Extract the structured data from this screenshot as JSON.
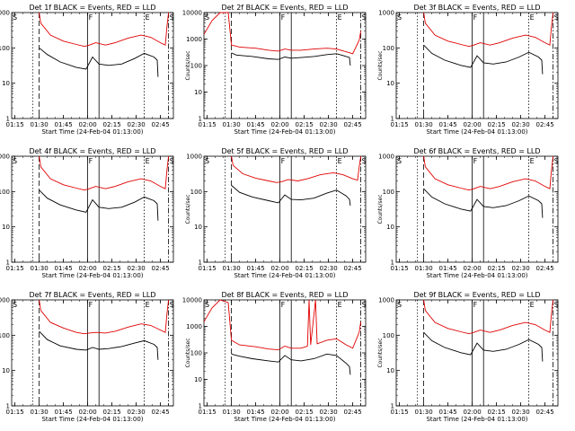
{
  "chart_data": {
    "type": "line",
    "scale": "log",
    "ylim": [
      1,
      1000
    ],
    "ylabel": "Counts/sec",
    "xlabel": "Start Time (24-Feb-04 01:13:00)",
    "x_ticks": [
      "01:15",
      "01:30",
      "01:45",
      "02:00",
      "02:15",
      "02:30",
      "02:45"
    ],
    "y_ticks": [
      "1",
      "10",
      "100",
      "1000"
    ],
    "y_ticks_ext": [
      "1",
      "10",
      "100",
      "1000",
      "10000"
    ],
    "marker_labels": [
      "S",
      "F",
      "E",
      "S"
    ],
    "x_axis_minutes": [
      0,
      100
    ],
    "marker_minutes": [
      17,
      47,
      54,
      82,
      97
    ],
    "panels": [
      {
        "title": "Det 1f BLACK = Events, RED = LLD",
        "ymax_decade": 3,
        "black": [
          [
            17,
            100
          ],
          [
            22,
            65
          ],
          [
            30,
            40
          ],
          [
            40,
            28
          ],
          [
            46,
            25
          ],
          [
            50,
            55
          ],
          [
            54,
            35
          ],
          [
            60,
            32
          ],
          [
            68,
            35
          ],
          [
            76,
            50
          ],
          [
            82,
            70
          ],
          [
            88,
            55
          ],
          [
            90,
            45
          ],
          [
            90.5,
            15
          ]
        ],
        "red": [
          [
            17,
            1000
          ],
          [
            18,
            500
          ],
          [
            24,
            230
          ],
          [
            32,
            155
          ],
          [
            40,
            125
          ],
          [
            45,
            110
          ],
          [
            48,
            120
          ],
          [
            52,
            140
          ],
          [
            58,
            120
          ],
          [
            64,
            140
          ],
          [
            72,
            190
          ],
          [
            80,
            230
          ],
          [
            86,
            200
          ],
          [
            92,
            140
          ],
          [
            95,
            120
          ],
          [
            96,
            400
          ],
          [
            97,
            1000
          ]
        ]
      },
      {
        "title": "Det 2f BLACK = Events, RED = LLD",
        "ymax_decade": 4,
        "black": [
          [
            17,
            300
          ],
          [
            20,
            250
          ],
          [
            30,
            220
          ],
          [
            40,
            180
          ],
          [
            46,
            170
          ],
          [
            50,
            210
          ],
          [
            54,
            190
          ],
          [
            60,
            200
          ],
          [
            68,
            220
          ],
          [
            76,
            260
          ],
          [
            82,
            280
          ],
          [
            86,
            240
          ],
          [
            90,
            200
          ],
          [
            90.5,
            100
          ]
        ],
        "red": [
          [
            0,
            1500
          ],
          [
            5,
            5000
          ],
          [
            10,
            12000
          ],
          [
            15,
            12000
          ],
          [
            17,
            600
          ],
          [
            22,
            500
          ],
          [
            32,
            450
          ],
          [
            40,
            380
          ],
          [
            46,
            350
          ],
          [
            50,
            420
          ],
          [
            54,
            380
          ],
          [
            60,
            380
          ],
          [
            68,
            420
          ],
          [
            76,
            450
          ],
          [
            82,
            420
          ],
          [
            88,
            330
          ],
          [
            92,
            280
          ],
          [
            96,
            900
          ],
          [
            97,
            2000
          ]
        ]
      },
      {
        "title": "Det 3f BLACK = Events, RED = LLD",
        "ymax_decade": 3,
        "black": [
          [
            17,
            120
          ],
          [
            22,
            70
          ],
          [
            30,
            45
          ],
          [
            40,
            32
          ],
          [
            46,
            28
          ],
          [
            50,
            60
          ],
          [
            54,
            38
          ],
          [
            60,
            35
          ],
          [
            68,
            40
          ],
          [
            76,
            55
          ],
          [
            82,
            75
          ],
          [
            88,
            55
          ],
          [
            90,
            45
          ],
          [
            90.5,
            18
          ]
        ],
        "red": [
          [
            17,
            1000
          ],
          [
            18,
            500
          ],
          [
            24,
            230
          ],
          [
            32,
            155
          ],
          [
            40,
            125
          ],
          [
            45,
            110
          ],
          [
            48,
            120
          ],
          [
            52,
            140
          ],
          [
            58,
            120
          ],
          [
            64,
            140
          ],
          [
            72,
            190
          ],
          [
            80,
            230
          ],
          [
            86,
            200
          ],
          [
            92,
            140
          ],
          [
            95,
            120
          ],
          [
            96,
            400
          ],
          [
            97,
            1000
          ]
        ]
      },
      {
        "title": "Det 4f BLACK = Events, RED = LLD",
        "ymax_decade": 3,
        "black": [
          [
            17,
            110
          ],
          [
            22,
            65
          ],
          [
            30,
            42
          ],
          [
            40,
            30
          ],
          [
            46,
            26
          ],
          [
            50,
            58
          ],
          [
            54,
            36
          ],
          [
            60,
            33
          ],
          [
            68,
            36
          ],
          [
            76,
            50
          ],
          [
            82,
            70
          ],
          [
            88,
            55
          ],
          [
            90,
            45
          ],
          [
            90.5,
            15
          ]
        ],
        "red": [
          [
            17,
            1000
          ],
          [
            18,
            500
          ],
          [
            24,
            230
          ],
          [
            32,
            155
          ],
          [
            40,
            125
          ],
          [
            45,
            110
          ],
          [
            48,
            120
          ],
          [
            52,
            140
          ],
          [
            58,
            120
          ],
          [
            64,
            140
          ],
          [
            72,
            190
          ],
          [
            80,
            230
          ],
          [
            86,
            200
          ],
          [
            92,
            140
          ],
          [
            95,
            120
          ],
          [
            96,
            400
          ],
          [
            97,
            1000
          ]
        ]
      },
      {
        "title": "Det 5f BLACK = Events, RED = LLD",
        "ymax_decade": 3,
        "black": [
          [
            17,
            150
          ],
          [
            22,
            95
          ],
          [
            30,
            70
          ],
          [
            40,
            55
          ],
          [
            46,
            48
          ],
          [
            50,
            80
          ],
          [
            54,
            60
          ],
          [
            60,
            58
          ],
          [
            68,
            65
          ],
          [
            76,
            90
          ],
          [
            82,
            110
          ],
          [
            88,
            75
          ],
          [
            90,
            60
          ],
          [
            90.5,
            40
          ]
        ],
        "red": [
          [
            17,
            1000
          ],
          [
            18,
            550
          ],
          [
            24,
            320
          ],
          [
            32,
            240
          ],
          [
            40,
            200
          ],
          [
            45,
            180
          ],
          [
            48,
            190
          ],
          [
            52,
            220
          ],
          [
            58,
            200
          ],
          [
            64,
            230
          ],
          [
            72,
            300
          ],
          [
            80,
            340
          ],
          [
            86,
            300
          ],
          [
            92,
            230
          ],
          [
            95,
            210
          ],
          [
            96,
            500
          ],
          [
            97,
            1000
          ]
        ]
      },
      {
        "title": "Det 6f BLACK = Events, RED = LLD",
        "ymax_decade": 3,
        "black": [
          [
            17,
            120
          ],
          [
            22,
            70
          ],
          [
            30,
            45
          ],
          [
            40,
            32
          ],
          [
            46,
            28
          ],
          [
            50,
            60
          ],
          [
            54,
            38
          ],
          [
            60,
            35
          ],
          [
            68,
            40
          ],
          [
            76,
            55
          ],
          [
            82,
            75
          ],
          [
            88,
            55
          ],
          [
            90,
            45
          ],
          [
            90.5,
            18
          ]
        ],
        "red": [
          [
            17,
            1000
          ],
          [
            18,
            500
          ],
          [
            24,
            230
          ],
          [
            32,
            155
          ],
          [
            40,
            125
          ],
          [
            45,
            110
          ],
          [
            48,
            120
          ],
          [
            52,
            140
          ],
          [
            58,
            120
          ],
          [
            64,
            140
          ],
          [
            72,
            190
          ],
          [
            80,
            230
          ],
          [
            86,
            200
          ],
          [
            92,
            140
          ],
          [
            95,
            120
          ],
          [
            96,
            400
          ],
          [
            97,
            1000
          ]
        ]
      },
      {
        "title": "Det 7f BLACK = Events, RED = LLD",
        "ymax_decade": 3,
        "black": [
          [
            17,
            130
          ],
          [
            22,
            75
          ],
          [
            30,
            50
          ],
          [
            40,
            40
          ],
          [
            46,
            38
          ],
          [
            50,
            45
          ],
          [
            54,
            40
          ],
          [
            60,
            42
          ],
          [
            68,
            48
          ],
          [
            76,
            60
          ],
          [
            82,
            70
          ],
          [
            88,
            55
          ],
          [
            90,
            45
          ],
          [
            90.5,
            20
          ]
        ],
        "red": [
          [
            17,
            1000
          ],
          [
            18,
            500
          ],
          [
            24,
            230
          ],
          [
            32,
            160
          ],
          [
            40,
            120
          ],
          [
            45,
            110
          ],
          [
            48,
            115
          ],
          [
            52,
            120
          ],
          [
            58,
            115
          ],
          [
            64,
            130
          ],
          [
            72,
            170
          ],
          [
            80,
            210
          ],
          [
            86,
            190
          ],
          [
            92,
            140
          ],
          [
            95,
            120
          ],
          [
            96,
            400
          ],
          [
            97,
            1000
          ]
        ]
      },
      {
        "title": "Det 8f BLACK = Events, RED = LLD",
        "ymax_decade": 4,
        "black": [
          [
            17,
            90
          ],
          [
            22,
            75
          ],
          [
            30,
            60
          ],
          [
            40,
            50
          ],
          [
            46,
            45
          ],
          [
            50,
            80
          ],
          [
            54,
            55
          ],
          [
            60,
            50
          ],
          [
            68,
            60
          ],
          [
            76,
            90
          ],
          [
            82,
            80
          ],
          [
            88,
            40
          ],
          [
            90,
            30
          ],
          [
            90.5,
            15
          ]
        ],
        "red": [
          [
            0,
            1500
          ],
          [
            5,
            5000
          ],
          [
            10,
            10000
          ],
          [
            15,
            8000
          ],
          [
            17,
            300
          ],
          [
            22,
            200
          ],
          [
            32,
            170
          ],
          [
            40,
            140
          ],
          [
            46,
            130
          ],
          [
            50,
            180
          ],
          [
            54,
            150
          ],
          [
            60,
            150
          ],
          [
            64,
            180
          ],
          [
            65,
            10000
          ],
          [
            66,
            200
          ],
          [
            69,
            10000
          ],
          [
            70,
            220
          ],
          [
            76,
            300
          ],
          [
            82,
            340
          ],
          [
            88,
            200
          ],
          [
            92,
            150
          ],
          [
            96,
            600
          ],
          [
            97,
            1500
          ]
        ]
      },
      {
        "title": "Det 9f BLACK = Events, RED = LLD",
        "ymax_decade": 3,
        "black": [
          [
            17,
            120
          ],
          [
            22,
            70
          ],
          [
            30,
            45
          ],
          [
            40,
            32
          ],
          [
            46,
            28
          ],
          [
            50,
            60
          ],
          [
            54,
            38
          ],
          [
            60,
            35
          ],
          [
            68,
            40
          ],
          [
            76,
            55
          ],
          [
            82,
            75
          ],
          [
            88,
            55
          ],
          [
            90,
            45
          ],
          [
            90.5,
            18
          ]
        ],
        "red": [
          [
            17,
            1000
          ],
          [
            18,
            500
          ],
          [
            24,
            230
          ],
          [
            32,
            155
          ],
          [
            40,
            125
          ],
          [
            45,
            110
          ],
          [
            48,
            120
          ],
          [
            52,
            140
          ],
          [
            58,
            120
          ],
          [
            64,
            140
          ],
          [
            72,
            190
          ],
          [
            80,
            230
          ],
          [
            86,
            200
          ],
          [
            92,
            140
          ],
          [
            95,
            120
          ],
          [
            96,
            400
          ],
          [
            97,
            1000
          ]
        ]
      }
    ]
  }
}
